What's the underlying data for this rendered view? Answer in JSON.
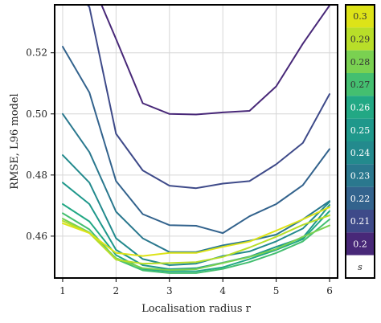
{
  "chart_data": {
    "type": "line",
    "xlabel": "Localisation radius r",
    "ylabel": "RMSE, L96 model",
    "x": [
      1,
      1.5,
      2,
      2.5,
      3,
      3.5,
      4,
      4.5,
      5,
      5.5,
      6
    ],
    "xticks": [
      1,
      2,
      3,
      4,
      5,
      6
    ],
    "yticks": [
      0.46,
      0.48,
      0.5,
      0.52
    ],
    "ytick_labels": [
      "0.46",
      "0.48",
      "0.50",
      "0.52"
    ],
    "xlim": [
      0.85,
      6.15
    ],
    "ylim": [
      0.4463,
      0.5357
    ],
    "grid": true,
    "colorbar": {
      "label": "s",
      "entries": [
        {
          "label": "0.3",
          "color": "#dde318"
        },
        {
          "label": "0.29",
          "color": "#b8de29"
        },
        {
          "label": "0.28",
          "color": "#7ad151"
        },
        {
          "label": "0.27",
          "color": "#44bf70"
        },
        {
          "label": "0.26",
          "color": "#22a884"
        },
        {
          "label": "0.25",
          "color": "#1f988b"
        },
        {
          "label": "0.24",
          "color": "#238a8d"
        },
        {
          "label": "0.23",
          "color": "#2a788e"
        },
        {
          "label": "0.22",
          "color": "#33638d"
        },
        {
          "label": "0.21",
          "color": "#3e4a89"
        },
        {
          "label": "0.2",
          "color": "#482878"
        }
      ]
    },
    "series": [
      {
        "s": 0.2,
        "color": "#482878",
        "values": [
          0.545,
          0.545,
          0.5245,
          0.5035,
          0.5,
          0.4998,
          0.5005,
          0.501,
          0.509,
          0.523,
          0.5355
        ]
      },
      {
        "s": 0.21,
        "color": "#3e4a89",
        "values": [
          0.545,
          0.535,
          0.4935,
          0.4815,
          0.4765,
          0.4757,
          0.4772,
          0.478,
          0.4835,
          0.4905,
          0.5065
        ]
      },
      {
        "s": 0.22,
        "color": "#33638d",
        "values": [
          0.522,
          0.507,
          0.478,
          0.4672,
          0.4636,
          0.4634,
          0.461,
          0.4665,
          0.4705,
          0.4767,
          0.4885
        ]
      },
      {
        "s": 0.23,
        "color": "#2a788e",
        "values": [
          0.5,
          0.4875,
          0.468,
          0.4593,
          0.4548,
          0.4548,
          0.457,
          0.4585,
          0.4605,
          0.4655,
          0.4715
        ]
      },
      {
        "s": 0.24,
        "color": "#238a8d",
        "values": [
          0.4865,
          0.4775,
          0.4593,
          0.4525,
          0.4505,
          0.451,
          0.4535,
          0.455,
          0.4583,
          0.4625,
          0.4712
        ]
      },
      {
        "s": 0.25,
        "color": "#1f988b",
        "values": [
          0.4775,
          0.4705,
          0.4555,
          0.4505,
          0.4492,
          0.4495,
          0.4513,
          0.4533,
          0.4565,
          0.4595,
          0.4702
        ]
      },
      {
        "s": 0.26,
        "color": "#22a884",
        "values": [
          0.4705,
          0.4648,
          0.4538,
          0.4492,
          0.4485,
          0.4485,
          0.4498,
          0.4525,
          0.4555,
          0.459,
          0.4682
        ]
      },
      {
        "s": 0.27,
        "color": "#44bf70",
        "values": [
          0.4675,
          0.4622,
          0.4525,
          0.4488,
          0.4479,
          0.4479,
          0.4493,
          0.4515,
          0.4545,
          0.4583,
          0.4655
        ]
      },
      {
        "s": 0.28,
        "color": "#7ad151",
        "values": [
          0.4657,
          0.4612,
          0.4528,
          0.4495,
          0.4489,
          0.4492,
          0.4512,
          0.4532,
          0.4558,
          0.4598,
          0.4635
        ]
      },
      {
        "s": 0.29,
        "color": "#b8de29",
        "values": [
          0.465,
          0.461,
          0.4523,
          0.451,
          0.4512,
          0.4515,
          0.4532,
          0.4563,
          0.4598,
          0.4637,
          0.4668
        ]
      },
      {
        "s": 0.3,
        "color": "#dde318",
        "values": [
          0.4642,
          0.461,
          0.4545,
          0.4535,
          0.4545,
          0.4545,
          0.4565,
          0.4582,
          0.4618,
          0.4655,
          0.4695
        ]
      }
    ]
  }
}
